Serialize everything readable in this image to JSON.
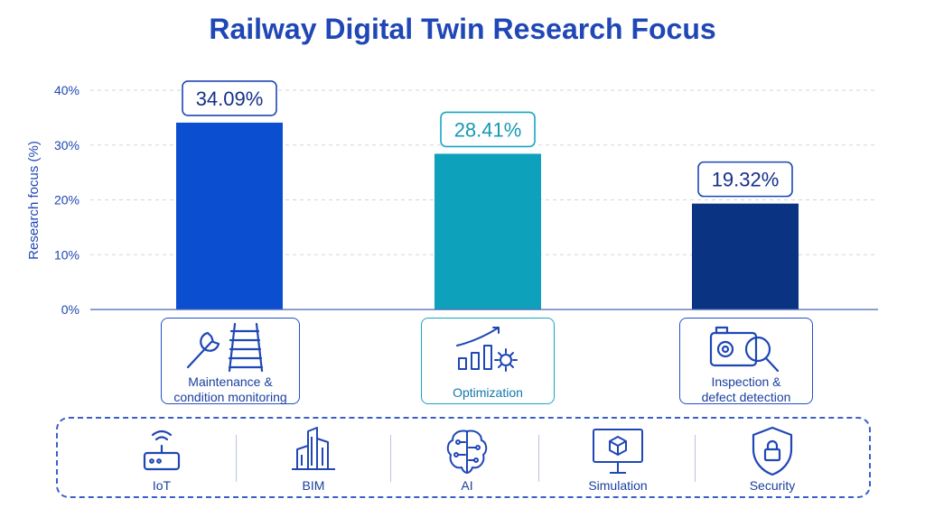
{
  "chart_data": {
    "type": "bar",
    "title": "Railway Digital Twin Research Focus",
    "ylabel": "Research focus (%)",
    "ylim": [
      0,
      40
    ],
    "yticks": [
      "0%",
      "10%",
      "20%",
      "30%",
      "40%"
    ],
    "grid": true,
    "categories": [
      "Maintenance & condition monitoring",
      "Optimization",
      "Inspection & defect detection"
    ],
    "values": [
      34.09,
      28.41,
      19.32
    ],
    "data_labels": [
      "34.09%",
      "28.41%",
      "19.32%"
    ],
    "colors": [
      "#0b4fd0",
      "#0ea1bb",
      "#0a3382"
    ]
  },
  "categories_display": [
    {
      "line1": "Maintenance &",
      "line2": "condition monitoring",
      "icon": "wrench-track-icon"
    },
    {
      "line1": "Optimization",
      "line2": "",
      "icon": "chart-gear-icon"
    },
    {
      "line1": "Inspection &",
      "line2": "defect detection",
      "icon": "camera-magnifier-icon"
    }
  ],
  "technologies": [
    {
      "label": "IoT",
      "icon": "iot-router-icon"
    },
    {
      "label": "BIM",
      "icon": "bim-building-icon"
    },
    {
      "label": "AI",
      "icon": "ai-brain-icon"
    },
    {
      "label": "Simulation",
      "icon": "simulation-monitor-icon"
    },
    {
      "label": "Security",
      "icon": "security-shield-icon"
    }
  ]
}
